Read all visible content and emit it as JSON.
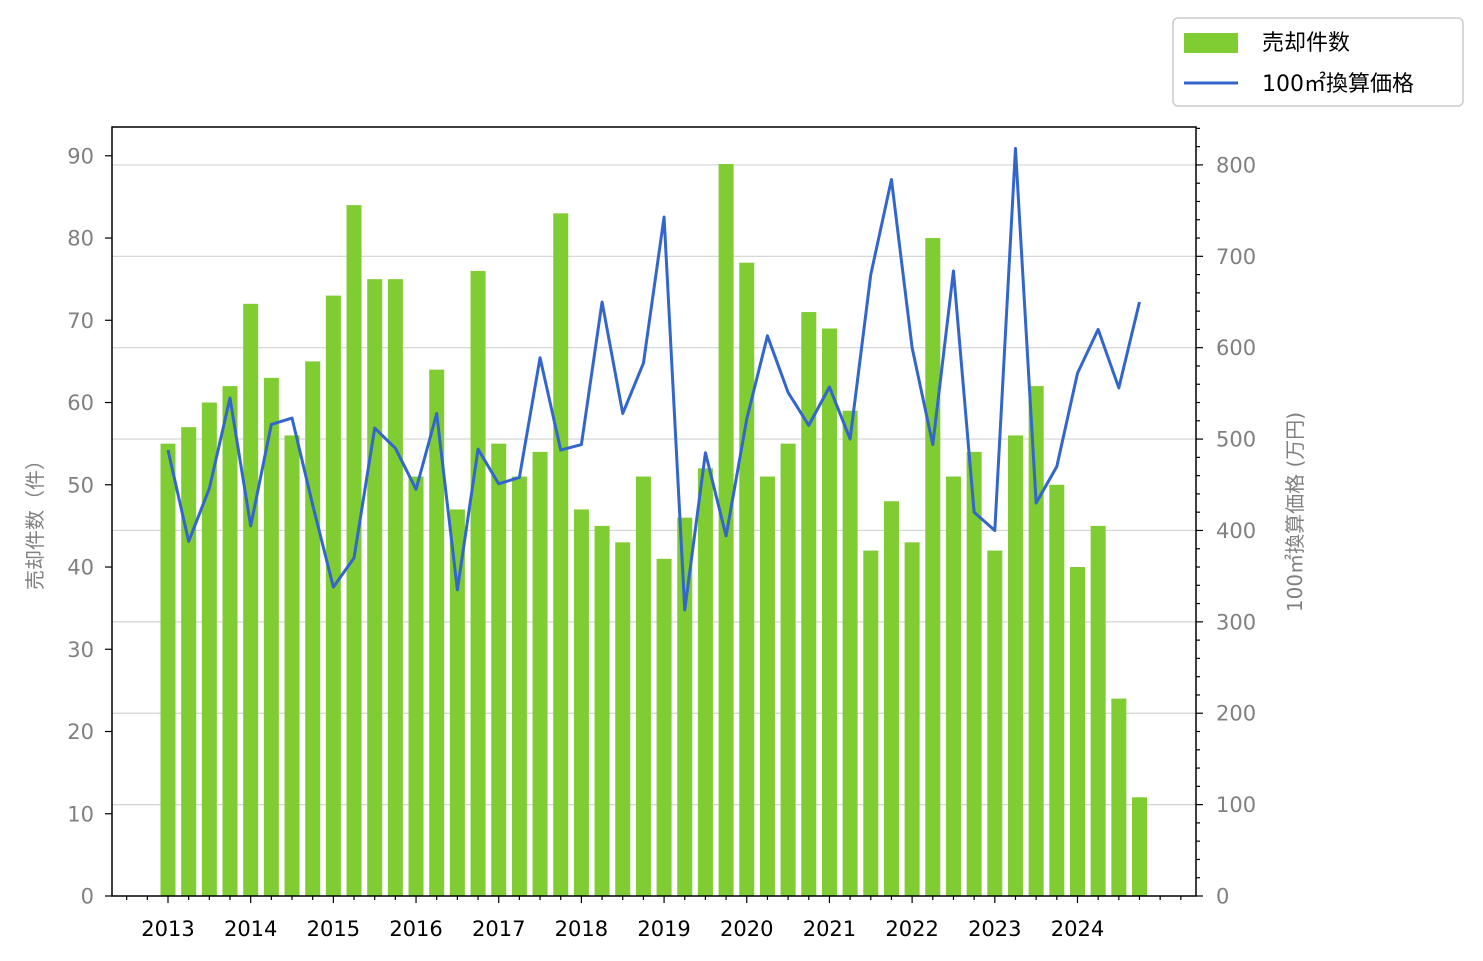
{
  "chart_data": {
    "type": "bar",
    "x_ticks": [
      "2013",
      "2014",
      "2015",
      "2016",
      "2017",
      "2018",
      "2019",
      "2020",
      "2021",
      "2022",
      "2023",
      "2024"
    ],
    "y_left": {
      "label": "売却件数（件）",
      "lim": [
        0,
        93.5
      ],
      "ticks": [
        0,
        10,
        20,
        30,
        40,
        50,
        60,
        70,
        80,
        90
      ]
    },
    "y_right": {
      "label": "100㎡換算価格 (万円)",
      "lim": [
        0,
        841.5
      ],
      "ticks": [
        0,
        100,
        200,
        300,
        400,
        500,
        600,
        700,
        800
      ]
    },
    "grid": "horizontal",
    "legend": {
      "position": "top-right"
    },
    "series": [
      {
        "name": "売却件数",
        "type": "bar",
        "axis": "left",
        "color": "#80cc33",
        "values": [
          55,
          57,
          60,
          62,
          72,
          63,
          56,
          65,
          73,
          84,
          75,
          75,
          51,
          64,
          47,
          76,
          55,
          51,
          54,
          83,
          47,
          45,
          43,
          51,
          41,
          46,
          52,
          89,
          77,
          51,
          55,
          71,
          69,
          59,
          42,
          48,
          43,
          80,
          51,
          54,
          42,
          56,
          62,
          50,
          40,
          45,
          24,
          12
        ]
      },
      {
        "name": "100㎡換算価格",
        "type": "line",
        "axis": "right",
        "color": "#3366cc",
        "values": [
          488,
          388,
          446,
          545,
          405,
          516,
          523,
          428,
          338,
          370,
          512,
          490,
          445,
          528,
          335,
          489,
          451,
          458,
          589,
          488,
          494,
          650,
          528,
          583,
          743,
          313,
          485,
          394,
          522,
          613,
          551,
          515,
          557,
          500,
          680,
          784,
          600,
          494,
          684,
          420,
          400,
          818,
          430,
          470,
          572,
          620,
          556,
          650
        ]
      }
    ]
  }
}
